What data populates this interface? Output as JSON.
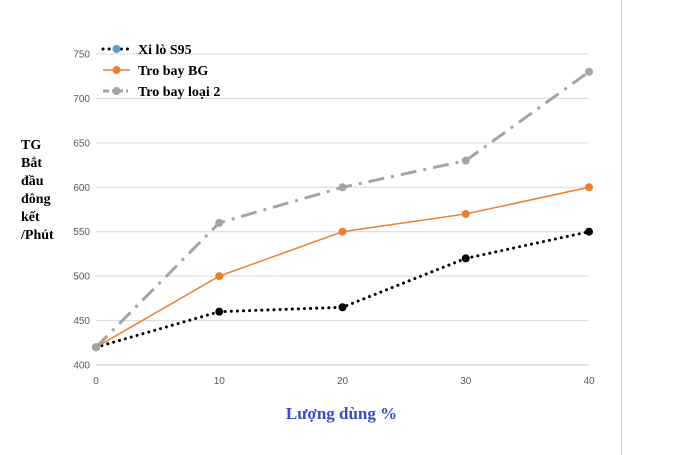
{
  "chart_data": {
    "type": "line",
    "x": [
      0,
      10,
      20,
      30,
      40
    ],
    "xlabel": "Lượng dùng %",
    "ylabel_lines": [
      "TG",
      "Bắt",
      "đầu",
      "đông",
      "kết",
      "/Phút"
    ],
    "ylim": [
      400,
      750
    ],
    "yticks": [
      400,
      450,
      500,
      550,
      600,
      650,
      700,
      750
    ],
    "xticks": [
      0,
      10,
      20,
      30,
      40
    ],
    "grid": "horizontal",
    "legend_position": "top-left",
    "series": [
      {
        "name": "Xi lò S95",
        "values": [
          420,
          460,
          465,
          520,
          550
        ],
        "color": "#000000",
        "line_style": "dotted",
        "marker_color": "#5b9bd5"
      },
      {
        "name": "Tro bay BG",
        "values": [
          420,
          500,
          550,
          570,
          600
        ],
        "color": "#ed7d31",
        "line_style": "solid",
        "marker_color": "#ed7d31"
      },
      {
        "name": "Tro bay loại 2",
        "values": [
          420,
          560,
          600,
          630,
          730
        ],
        "color": "#a5a5a5",
        "line_style": "dash-dot",
        "marker_color": "#a5a5a5"
      }
    ]
  }
}
